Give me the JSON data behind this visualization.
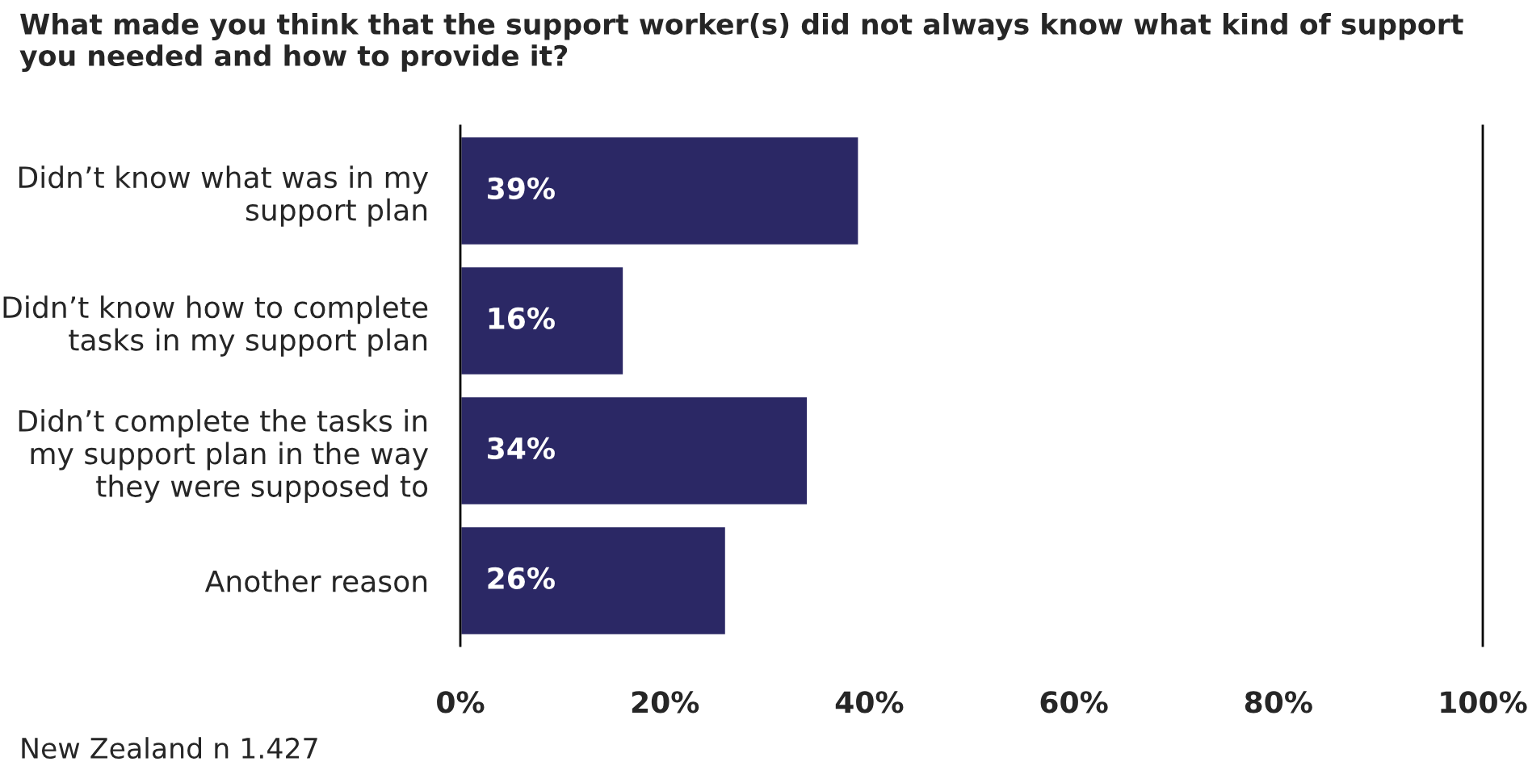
{
  "chart_data": {
    "type": "bar",
    "orientation": "horizontal",
    "title": "What made you think that the support worker(s) did not always know what kind of support you needed and how to provide it?",
    "categories": [
      "Didn’t know what was in my\nsupport plan",
      "Didn’t know how to complete\ntasks in my support plan",
      "Didn’t complete the tasks in\nmy support plan in the way\nthey were supposed to",
      "Another reason"
    ],
    "values": [
      39,
      16,
      34,
      26
    ],
    "value_labels": [
      "39%",
      "16%",
      "34%",
      "26%"
    ],
    "color": "#2b2865",
    "xlim": [
      0,
      100
    ],
    "xticks": [
      {
        "value": 0,
        "label": "0%"
      },
      {
        "value": 20,
        "label": "20%"
      },
      {
        "value": 40,
        "label": "40%"
      },
      {
        "value": 60,
        "label": "60%"
      },
      {
        "value": 80,
        "label": "80%"
      },
      {
        "value": 100,
        "label": "100%"
      }
    ],
    "grid": false,
    "legend": false,
    "annotations": [
      "New Zealand n 1.427"
    ]
  }
}
